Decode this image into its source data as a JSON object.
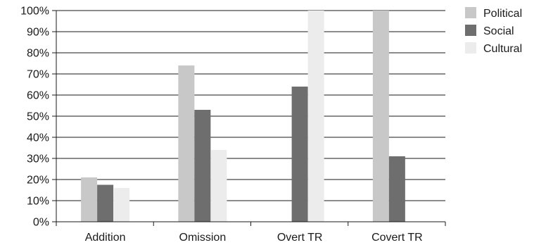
{
  "chart_data": {
    "type": "bar",
    "title": "",
    "xlabel": "",
    "ylabel": "",
    "categories": [
      "Addition",
      "Omission",
      "Overt TR",
      "Covert TR"
    ],
    "series": [
      {
        "name": "Political",
        "color": "#c8c8c8",
        "values": [
          21,
          74,
          0,
          100
        ]
      },
      {
        "name": "Social",
        "color": "#6e6e6e",
        "values": [
          17.5,
          53,
          64,
          31
        ]
      },
      {
        "name": "Cultural",
        "color": "#ececec",
        "values": [
          16,
          34,
          100,
          0
        ]
      }
    ],
    "ylim": [
      0,
      100
    ],
    "yticks": [
      "0%",
      "10%",
      "20%",
      "30%",
      "40%",
      "50%",
      "60%",
      "70%",
      "80%",
      "90%",
      "100%"
    ],
    "grid": true,
    "legend_position": "right"
  }
}
